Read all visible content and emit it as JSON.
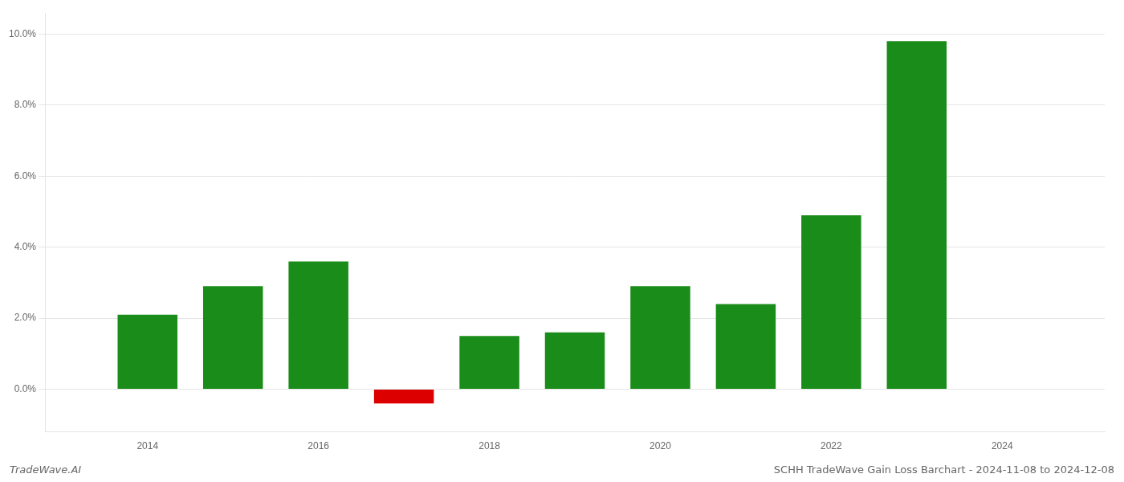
{
  "chart_data": {
    "type": "bar",
    "title": "SCHH TradeWave Gain Loss Barchart - 2024-11-08 to 2024-12-08",
    "annotations": [
      "TradeWave.AI"
    ],
    "x": [
      2014,
      2015,
      2016,
      2017,
      2018,
      2019,
      2020,
      2021,
      2022,
      2023
    ],
    "values": [
      0.021,
      0.029,
      0.036,
      -0.004,
      0.015,
      0.016,
      0.029,
      0.024,
      0.049,
      0.098
    ],
    "colors": [
      "#1a8c1a",
      "#1a8c1a",
      "#1a8c1a",
      "#dd0000",
      "#1a8c1a",
      "#1a8c1a",
      "#1a8c1a",
      "#1a8c1a",
      "#1a8c1a",
      "#1a8c1a"
    ],
    "xlim": [
      2012.8,
      2025.2
    ],
    "xticks": [
      2014,
      2016,
      2018,
      2020,
      2022,
      2024
    ],
    "ylim": [
      -0.012,
      0.106
    ],
    "yticks": [
      {
        "value": 0.0,
        "label": "0.0%"
      },
      {
        "value": 0.02,
        "label": "2.0%"
      },
      {
        "value": 0.04,
        "label": "4.0%"
      },
      {
        "value": 0.06,
        "label": "6.0%"
      },
      {
        "value": 0.08,
        "label": "8.0%"
      },
      {
        "value": 0.1,
        "label": "10.0%"
      }
    ],
    "grid": true
  }
}
